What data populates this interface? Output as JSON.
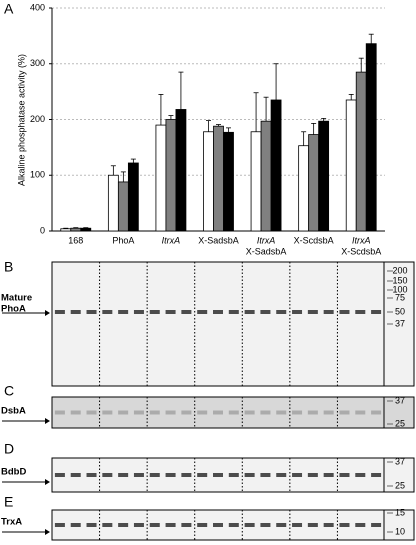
{
  "chart_data": {
    "type": "bar",
    "y_label": "Alkaline phosphatase activity (%)",
    "categories": [
      "168",
      "PhoA",
      "ItrxA",
      "X-SadsbA",
      [
        "ItrxA",
        "X-SadsbA"
      ],
      "X-ScdsbA",
      [
        "ItrxA",
        "X-ScdsbA"
      ]
    ],
    "series": [
      {
        "color": "#ffffff",
        "values": [
          4,
          100,
          190,
          178,
          178,
          153,
          235
        ],
        "errors": [
          1,
          17,
          55,
          20,
          70,
          25,
          10
        ]
      },
      {
        "color": "#808080",
        "values": [
          5,
          88,
          200,
          188,
          197,
          173,
          285
        ],
        "errors": [
          1,
          18,
          7,
          3,
          43,
          20,
          25
        ]
      },
      {
        "color": "#000000",
        "values": [
          5,
          122,
          218,
          177,
          235,
          197,
          336
        ],
        "errors": [
          1,
          7,
          67,
          8,
          65,
          5,
          17
        ]
      }
    ],
    "ylim": [
      0,
      400
    ],
    "yticks": [
      0,
      100,
      200,
      300,
      400
    ],
    "grid": true
  },
  "panels": {
    "a": "A",
    "b": "B",
    "c": "C",
    "d": "D",
    "e": "E"
  },
  "blots": {
    "b": {
      "name": [
        "Mature",
        "PhoA"
      ],
      "markers": [
        "200",
        "150",
        "100",
        "75",
        "50",
        "37"
      ]
    },
    "c": {
      "name": "DsbA",
      "markers": [
        "37",
        "25"
      ]
    },
    "d": {
      "name": "BdbD",
      "markers": [
        "37",
        "25"
      ]
    },
    "e": {
      "name": "TrxA",
      "markers": [
        "15",
        "10"
      ]
    }
  }
}
